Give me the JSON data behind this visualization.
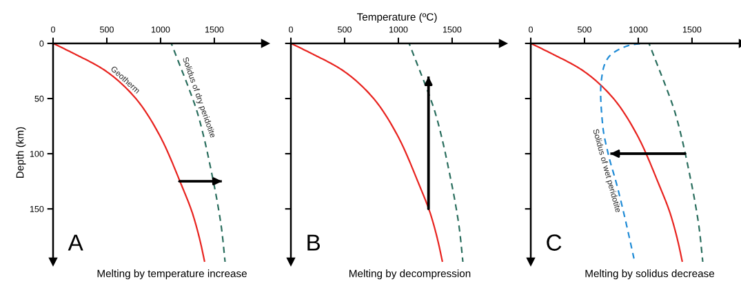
{
  "chart_data": [
    {
      "type": "line",
      "title": "Melting by temperature increase",
      "ylabel": "Depth (km)",
      "annotations": [
        "A"
      ],
      "xlim": [
        0,
        1975
      ],
      "ylim": [
        198,
        0
      ],
      "xticks": [
        0,
        500,
        1000,
        1500
      ],
      "yticks": [
        0,
        50,
        100,
        150
      ],
      "grid": false,
      "legend": false,
      "series": [
        {
          "name": "Geotherm",
          "color": "#e8231f",
          "line_style": "solid",
          "x": [
            0,
            210,
            490,
            770,
            1000,
            1180,
            1300,
            1370,
            1410
          ],
          "values": [
            0,
            10,
            25,
            50,
            85,
            125,
            155,
            180,
            198
          ]
        },
        {
          "name": "Solidus of dry peridotite",
          "color": "#2a6e5e",
          "line_style": "dashed",
          "x": [
            1100,
            1180,
            1260,
            1340,
            1410,
            1470,
            1530,
            1570,
            1600
          ],
          "values": [
            0,
            20,
            40,
            62,
            88,
            115,
            145,
            170,
            198
          ]
        },
        {
          "color": "#000000",
          "line_style": "solid",
          "x": [
            1175,
            1570
          ],
          "values": [
            125,
            125
          ]
        }
      ]
    },
    {
      "type": "line",
      "title": "Melting by decompression",
      "xlabel": "Temperature (ºC)",
      "annotations": [
        "B"
      ],
      "xlim": [
        0,
        1975
      ],
      "ylim": [
        198,
        0
      ],
      "xticks": [
        0,
        500,
        1000,
        1500
      ],
      "yticks": [
        {
          "value": 0,
          "label": null
        },
        {
          "value": 50,
          "label": null
        },
        {
          "value": 100,
          "label": null
        },
        {
          "value": 150,
          "label": null
        }
      ],
      "tick_labels": "x",
      "grid": false,
      "legend": false,
      "series": [
        {
          "color": "#e8231f",
          "line_style": "solid",
          "x": [
            0,
            210,
            490,
            770,
            1000,
            1180,
            1300,
            1370,
            1410
          ],
          "values": [
            0,
            10,
            25,
            50,
            85,
            125,
            155,
            180,
            198
          ]
        },
        {
          "color": "#2a6e5e",
          "line_style": "dashed",
          "x": [
            1100,
            1180,
            1260,
            1340,
            1410,
            1470,
            1530,
            1570,
            1600
          ],
          "values": [
            0,
            20,
            40,
            62,
            88,
            115,
            145,
            170,
            198
          ]
        },
        {
          "color": "#000000",
          "line_style": "solid",
          "x": [
            1280,
            1280
          ],
          "values": [
            150,
            30
          ]
        }
      ]
    },
    {
      "type": "line",
      "title": "Melting by solidus decrease",
      "annotations": [
        "C"
      ],
      "xlim": [
        0,
        1975
      ],
      "ylim": [
        198,
        0
      ],
      "xticks": [
        0,
        500,
        1000,
        1500
      ],
      "yticks": [
        {
          "value": 0,
          "label": null
        },
        {
          "value": 50,
          "label": null
        },
        {
          "value": 100,
          "label": null
        },
        {
          "value": 150,
          "label": null
        }
      ],
      "tick_labels": "x",
      "grid": false,
      "legend": false,
      "series": [
        {
          "color": "#e8231f",
          "line_style": "solid",
          "x": [
            0,
            210,
            490,
            770,
            1000,
            1180,
            1300,
            1370,
            1410
          ],
          "values": [
            0,
            10,
            25,
            50,
            85,
            125,
            155,
            180,
            198
          ]
        },
        {
          "color": "#2a6e5e",
          "line_style": "dashed",
          "x": [
            1100,
            1180,
            1260,
            1340,
            1410,
            1470,
            1530,
            1570,
            1600
          ],
          "values": [
            0,
            20,
            40,
            62,
            88,
            115,
            145,
            170,
            198
          ]
        },
        {
          "name": "Solidus of wet peridotite",
          "color": "#1f8bd6",
          "line_style": "dashed",
          "x": [
            1050,
            950,
            830,
            720,
            670,
            650,
            670,
            720,
            800,
            880,
            960
          ],
          "values": [
            0,
            1,
            5,
            13,
            25,
            45,
            75,
            100,
            128,
            160,
            195
          ]
        },
        {
          "color": "#000000",
          "line_style": "solid",
          "x": [
            1437,
            740
          ],
          "values": [
            100,
            100
          ]
        }
      ]
    }
  ]
}
